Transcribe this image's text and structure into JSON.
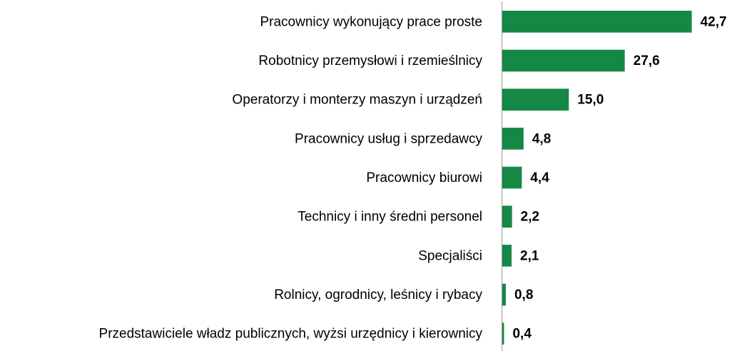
{
  "chart_data": {
    "type": "barh",
    "categories": [
      "Pracownicy wykonujący prace proste",
      "Robotnicy przemysłowi i rzemieślnicy",
      "Operatorzy i monterzy maszyn i urządzeń",
      "Pracownicy usług i sprzedawcy",
      "Pracownicy biurowi",
      "Technicy i inny średni personel",
      "Specjaliści",
      "Rolnicy, ogrodnicy, leśnicy i rybacy",
      "Przedstawiciele władz publicznych, wyżsi urzędnicy i kierownicy"
    ],
    "values": [
      42.7,
      27.6,
      15.0,
      4.8,
      4.4,
      2.2,
      2.1,
      0.8,
      0.4
    ],
    "value_labels": [
      "42,7",
      "27,6",
      "15,0",
      "4,8",
      "4,4",
      "2,2",
      "2,1",
      "0,8",
      "0,4"
    ],
    "color": "#168845",
    "xlim": [
      0,
      50
    ]
  }
}
